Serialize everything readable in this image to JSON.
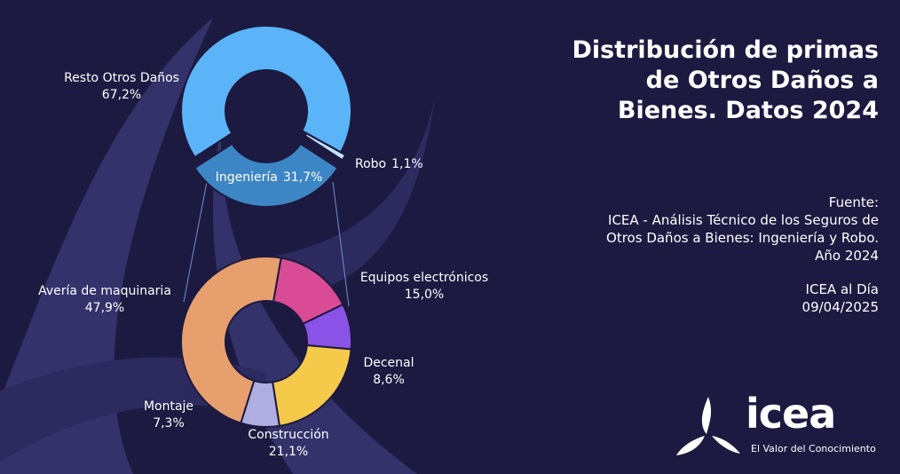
{
  "title": "Distribución de primas de Otros Daños a Bienes. Datos 2024",
  "source": {
    "heading": "Fuente:",
    "text": "ICEA - Análisis Técnico de los Seguros de Otros Daños a Bienes: Ingeniería y Robo. Año 2024",
    "publication": "ICEA al Día",
    "date": "09/04/2025"
  },
  "logo": {
    "name": "icea",
    "tagline": "El Valor del Conocimiento"
  },
  "chart_data": [
    {
      "type": "pie",
      "categories": [
        "Resto Otros Daños",
        "Robo",
        "Ingeniería"
      ],
      "values": [
        67.2,
        1.1,
        31.7
      ],
      "value_labels": [
        "67,2%",
        "1,1%",
        "31,7%"
      ],
      "colors": [
        "#5ab4f7",
        "#c4e3fb",
        "#3d86c6"
      ]
    },
    {
      "type": "pie",
      "categories": [
        "Equipos electrónicos",
        "Decenal",
        "Construcción",
        "Montaje",
        "Avería de maquinaria"
      ],
      "values": [
        15.0,
        8.6,
        21.1,
        7.3,
        47.9
      ],
      "value_labels": [
        "15,0%",
        "8,6%",
        "21,1%",
        "7,3%",
        "47,9%"
      ],
      "colors": [
        "#d94b95",
        "#8b52e8",
        "#f5c94a",
        "#b0aee0",
        "#e89f6e"
      ]
    }
  ]
}
